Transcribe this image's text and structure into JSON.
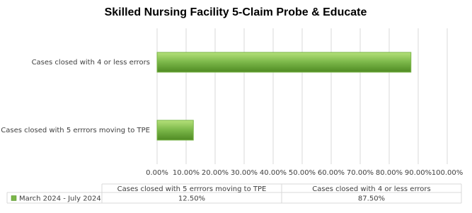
{
  "chart_data": {
    "type": "hbar",
    "title": "Skilled Nursing Facility 5-Claim Probe & Educate",
    "categories": [
      "Cases closed with 5 errrors moving to TPE",
      "Cases closed with 4 or less errors"
    ],
    "series": [
      {
        "name": "March 2024 - July 2024",
        "color": "#7ab648",
        "values": [
          12.5,
          87.5
        ],
        "value_labels": [
          "12.50%",
          "87.50%"
        ]
      }
    ],
    "xlim": [
      0,
      100
    ],
    "xticks": [
      {
        "value": 0,
        "label": "0.00%"
      },
      {
        "value": 10,
        "label": "10.00%"
      },
      {
        "value": 20,
        "label": "20.00%"
      },
      {
        "value": 30,
        "label": "30.00%"
      },
      {
        "value": 40,
        "label": "40.00%"
      },
      {
        "value": 50,
        "label": "50.00%"
      },
      {
        "value": 60,
        "label": "60.00%"
      },
      {
        "value": 70,
        "label": "70.00%"
      },
      {
        "value": 80,
        "label": "80.00%"
      },
      {
        "value": 90,
        "label": "90.00%"
      },
      {
        "value": 100,
        "label": "100.00%"
      }
    ],
    "grid": true
  }
}
